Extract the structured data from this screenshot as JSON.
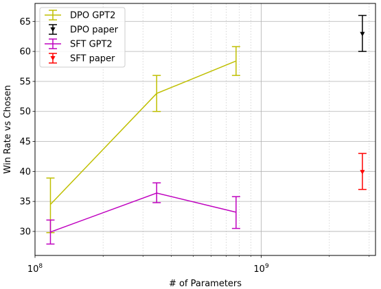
{
  "chart_data": {
    "type": "line",
    "xscale": "log",
    "xlim": [
      100000000,
      3200000000
    ],
    "ylim": [
      26,
      68
    ],
    "xlabel": "# of Parameters",
    "ylabel": "Win Rate vs Chosen",
    "grid": "on (major and minor x, major y)",
    "legend_position": "top-left",
    "x_major_ticks": [
      {
        "value": 100000000,
        "base": "10",
        "exp": "8"
      },
      {
        "value": 1000000000,
        "base": "10",
        "exp": "9"
      }
    ],
    "y_ticks": [
      30,
      35,
      40,
      45,
      50,
      55,
      60,
      65
    ],
    "series": [
      {
        "name": "DPO GPT2",
        "color": "#bfbf00",
        "style": "line",
        "x": [
          117000000,
          345000000,
          774000000
        ],
        "y": [
          34.5,
          53.0,
          58.4
        ],
        "yerr_low": [
          29.8,
          50.0,
          56.0
        ],
        "yerr_high": [
          38.9,
          56.0,
          60.8
        ]
      },
      {
        "name": "DPO paper",
        "color": "#000000",
        "style": "marker",
        "x": [
          2800000000
        ],
        "y": [
          62.9
        ],
        "yerr_low": [
          60.0
        ],
        "yerr_high": [
          66.0
        ]
      },
      {
        "name": "SFT GPT2",
        "color": "#bf00bf",
        "style": "line",
        "x": [
          117000000,
          345000000,
          774000000
        ],
        "y": [
          29.9,
          36.4,
          33.2
        ],
        "yerr_low": [
          27.9,
          34.8,
          30.5
        ],
        "yerr_high": [
          31.9,
          38.1,
          35.8
        ]
      },
      {
        "name": "SFT paper",
        "color": "#ff0000",
        "style": "marker",
        "x": [
          2800000000
        ],
        "y": [
          39.9
        ],
        "yerr_low": [
          37.0
        ],
        "yerr_high": [
          43.0
        ]
      }
    ]
  }
}
